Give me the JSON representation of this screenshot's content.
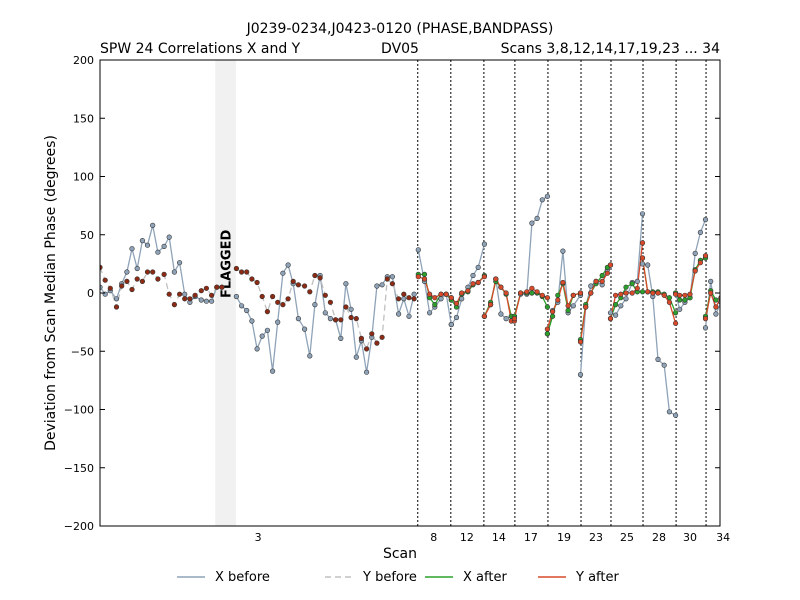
{
  "chart_data": {
    "type": "line",
    "title": "J0239-0234,J0423-0120 (PHASE,BANDPASS)",
    "subtitle_left": "SPW 24 Correlations X and Y",
    "subtitle_center": "DV05",
    "subtitle_right": "Scans 3,8,12,14,17,19,23 ... 34",
    "xlabel": "Scan",
    "ylabel": "Deviation from Scan Median Phase (degrees)",
    "ylim": [
      -200,
      200
    ],
    "yticks": [
      -200,
      -150,
      -100,
      -50,
      0,
      50,
      100,
      150,
      200
    ],
    "ytick_labels": [
      "−200",
      "−150",
      "−100",
      "−50",
      "0",
      "50",
      "100",
      "150",
      "200"
    ],
    "x_range": [
      0,
      600
    ],
    "flagged_region": {
      "x0": 111.5,
      "x1": 131.5,
      "label": "FLAGGED"
    },
    "scan_boundaries": [
      307.5,
      339.5,
      371.5,
      401.5,
      433.5,
      465.5,
      494.5,
      525.5,
      557.5,
      586.5
    ],
    "scan_ticks": [
      {
        "x": 153,
        "label": "3"
      },
      {
        "x": 323,
        "label": "8"
      },
      {
        "x": 355,
        "label": "12"
      },
      {
        "x": 386,
        "label": "14"
      },
      {
        "x": 417,
        "label": "17"
      },
      {
        "x": 449,
        "label": "19"
      },
      {
        "x": 480,
        "label": "23"
      },
      {
        "x": 510,
        "label": "25"
      },
      {
        "x": 541,
        "label": "28"
      },
      {
        "x": 571,
        "label": "30"
      },
      {
        "x": 603,
        "label": "34"
      }
    ],
    "series": [
      {
        "name": "X before",
        "color": "#8fa3b8",
        "style": "solid",
        "segments": [
          {
            "x": [
              0,
              5,
              10,
              16,
              21,
              26,
              31,
              36,
              41,
              46,
              51,
              56,
              62,
              67,
              72,
              77,
              82,
              87,
              92,
              98,
              103,
              108,
              113,
              118
            ],
            "y": [
              5,
              -1,
              2,
              -5,
              8,
              18,
              38,
              21,
              45,
              41,
              58,
              35,
              40,
              48,
              18,
              26,
              -1,
              -8,
              -3,
              -6,
              -7,
              -7,
              5,
              5
            ]
          },
          {
            "x": [
              132,
              137,
              142,
              147,
              152,
              157,
              162,
              167,
              172,
              177,
              182,
              187,
              192,
              198,
              203,
              208,
              213,
              218,
              223,
              228,
              233,
              238,
              243,
              248,
              253,
              258,
              263,
              268,
              273,
              278,
              283,
              289,
              294,
              299,
              304
            ],
            "y": [
              -3,
              -11,
              -15,
              -24,
              -48,
              -37,
              -32,
              -67,
              -25,
              17,
              24,
              8,
              -22,
              -31,
              -54,
              -10,
              15,
              -17,
              -22,
              -23,
              -39,
              8,
              -14,
              -55,
              -41,
              -68,
              -38,
              6,
              7,
              14,
              14,
              -18,
              -5,
              -20,
              -1
            ]
          },
          {
            "x": [
              308,
              314,
              319,
              324,
              330,
              335,
              340
            ],
            "y": [
              37,
              10,
              -17,
              -12,
              -5,
              -1,
              -27
            ]
          },
          {
            "x": [
              340,
              345,
              350,
              356,
              361,
              366,
              372
            ],
            "y": [
              -27,
              -21,
              -5,
              5,
              15,
              22,
              42
            ]
          },
          {
            "x": [
              372,
              378,
              383,
              388,
              393,
              398,
              401
            ],
            "y": [
              -20,
              -10,
              12,
              -18,
              -22,
              -20,
              -20
            ]
          },
          {
            "x": [
              401,
              407,
              413,
              418,
              423,
              428,
              433
            ],
            "y": [
              -20,
              -1,
              -1,
              60,
              64,
              80,
              83
            ]
          },
          {
            "x": [
              433,
              438,
              443,
              448,
              453,
              458,
              465
            ],
            "y": [
              -35,
              -15,
              -8,
              36,
              -17,
              -11,
              -2
            ]
          },
          {
            "x": [
              465,
              470,
              475,
              480,
              486,
              491,
              494
            ],
            "y": [
              -70,
              -12,
              6,
              10,
              7,
              20,
              24
            ]
          },
          {
            "x": [
              494,
              499,
              504,
              509,
              515,
              520,
              525
            ],
            "y": [
              -17,
              -19,
              -11,
              -5,
              9,
              10,
              68
            ]
          },
          {
            "x": [
              525,
              530,
              535,
              540,
              546,
              551,
              557
            ],
            "y": [
              25,
              24,
              -3,
              -57,
              -62,
              -102,
              -105
            ]
          },
          {
            "x": [
              557,
              561,
              566,
              571,
              576,
              581,
              586
            ],
            "y": [
              0,
              -14,
              -8,
              -4,
              34,
              52,
              63
            ]
          },
          {
            "x": [
              586,
              591,
              596,
              601,
              606,
              611,
              616,
              621
            ],
            "y": [
              -30,
              10,
              -18,
              -8,
              -2,
              5,
              20,
              40
            ]
          }
        ]
      },
      {
        "name": "Y before",
        "color": "#c0c0c0",
        "style": "dashed",
        "segments": [
          {
            "x": [
              0,
              5,
              10,
              16,
              21,
              26,
              31,
              36,
              41,
              46,
              51,
              56,
              62,
              67,
              72,
              77,
              82,
              87,
              92,
              98,
              103,
              108,
              113,
              118
            ],
            "y": [
              22,
              11,
              4,
              -12,
              6,
              10,
              3,
              12,
              10,
              18,
              18,
              12,
              16,
              -1,
              -10,
              -1,
              -5,
              -5,
              -2,
              2,
              4,
              -2,
              5,
              5
            ]
          },
          {
            "x": [
              132,
              137,
              142,
              147,
              152,
              157,
              162,
              167,
              172,
              177,
              182,
              187,
              192,
              198,
              203,
              208,
              213,
              218,
              223,
              228,
              233,
              238,
              243,
              248,
              253,
              258,
              263,
              268,
              273,
              278,
              283,
              289,
              294,
              299,
              304
            ],
            "y": [
              21,
              18,
              18,
              12,
              9,
              -3,
              -16,
              -3,
              -8,
              -10,
              -5,
              10,
              7,
              6,
              1,
              15,
              13,
              -2,
              -8,
              -23,
              -23,
              -12,
              -21,
              -22,
              -39,
              -48,
              -35,
              -43,
              -38,
              12,
              8,
              -5,
              -1,
              -4,
              -5
            ]
          }
        ]
      },
      {
        "name": "X after",
        "color": "#2ca02c",
        "style": "solid",
        "segments": [
          {
            "x": [
              308,
              314,
              319,
              324,
              330,
              335,
              340
            ],
            "y": [
              16,
              16,
              -4,
              -10,
              -1,
              -1,
              -6
            ]
          },
          {
            "x": [
              340,
              345,
              350,
              356,
              361,
              366,
              372
            ],
            "y": [
              -6,
              -12,
              -1,
              1,
              7,
              9,
              15
            ]
          },
          {
            "x": [
              372,
              378,
              383,
              388,
              393,
              398,
              401
            ],
            "y": [
              -20,
              -8,
              10,
              5,
              -1,
              -20,
              -20
            ]
          },
          {
            "x": [
              401,
              407,
              413,
              418,
              423,
              428,
              433
            ],
            "y": [
              -20,
              0,
              0,
              0,
              0,
              -3,
              -12
            ]
          },
          {
            "x": [
              433,
              438,
              443,
              448,
              453,
              458,
              465
            ],
            "y": [
              -35,
              -20,
              -2,
              8,
              -15,
              -2,
              0
            ]
          },
          {
            "x": [
              465,
              470,
              475,
              480,
              486,
              491,
              494
            ],
            "y": [
              -40,
              -10,
              0,
              8,
              15,
              22,
              24
            ]
          },
          {
            "x": [
              494,
              499,
              504,
              509,
              515,
              520,
              525
            ],
            "y": [
              -22,
              -10,
              -4,
              5,
              8,
              1,
              1
            ]
          },
          {
            "x": [
              525,
              530,
              535,
              540,
              546,
              551,
              557
            ],
            "y": [
              30,
              1,
              1,
              1,
              -1,
              -4,
              -17
            ]
          },
          {
            "x": [
              557,
              561,
              566,
              571,
              576,
              581,
              586
            ],
            "y": [
              0,
              -6,
              -6,
              -4,
              20,
              28,
              30
            ]
          },
          {
            "x": [
              586,
              591,
              596,
              601,
              606,
              611,
              616,
              621
            ],
            "y": [
              -20,
              2,
              -6,
              -4,
              0,
              5,
              14,
              20
            ]
          }
        ]
      },
      {
        "name": "Y after",
        "color": "#d84a2a",
        "style": "solid",
        "segments": [
          {
            "x": [
              308,
              314,
              319,
              324,
              330,
              335,
              340
            ],
            "y": [
              14,
              12,
              -1,
              -4,
              -1,
              -1,
              -4
            ]
          },
          {
            "x": [
              340,
              345,
              350,
              356,
              361,
              366,
              372
            ],
            "y": [
              -4,
              -9,
              0,
              2,
              8,
              9,
              14
            ]
          },
          {
            "x": [
              372,
              378,
              383,
              388,
              393,
              398,
              401
            ],
            "y": [
              -20,
              -10,
              12,
              5,
              0,
              -24,
              -24
            ]
          },
          {
            "x": [
              401,
              407,
              413,
              418,
              423,
              428,
              433
            ],
            "y": [
              -22,
              0,
              1,
              4,
              1,
              -2,
              -4
            ]
          },
          {
            "x": [
              433,
              438,
              443,
              448,
              453,
              458,
              465
            ],
            "y": [
              -31,
              -16,
              -6,
              9,
              -11,
              -2,
              0
            ]
          },
          {
            "x": [
              465,
              470,
              475,
              480,
              486,
              491,
              494
            ],
            "y": [
              -42,
              -12,
              0,
              10,
              10,
              17,
              24
            ]
          },
          {
            "x": [
              494,
              499,
              504,
              509,
              515,
              520,
              525
            ],
            "y": [
              -22,
              -2,
              -1,
              0,
              0,
              4,
              43
            ]
          },
          {
            "x": [
              525,
              530,
              535,
              540,
              546,
              551,
              557
            ],
            "y": [
              30,
              1,
              0,
              0,
              -2,
              -8,
              -26
            ]
          },
          {
            "x": [
              557,
              561,
              566,
              571,
              576,
              581,
              586
            ],
            "y": [
              -1,
              -2,
              -2,
              -1,
              19,
              26,
              32
            ]
          },
          {
            "x": [
              586,
              591,
              596,
              601,
              606,
              611,
              616,
              621
            ],
            "y": [
              -22,
              0,
              -12,
              -4,
              2,
              5,
              12,
              18
            ]
          }
        ]
      }
    ],
    "legend": {
      "placement": "bottom",
      "entries": [
        {
          "label": "X before",
          "color": "#8fa3b8",
          "style": "solid"
        },
        {
          "label": "Y before",
          "color": "#c0c0c0",
          "style": "dashed"
        },
        {
          "label": "X after",
          "color": "#2ca02c",
          "style": "solid"
        },
        {
          "label": "Y after",
          "color": "#d84a2a",
          "style": "solid"
        }
      ]
    }
  }
}
